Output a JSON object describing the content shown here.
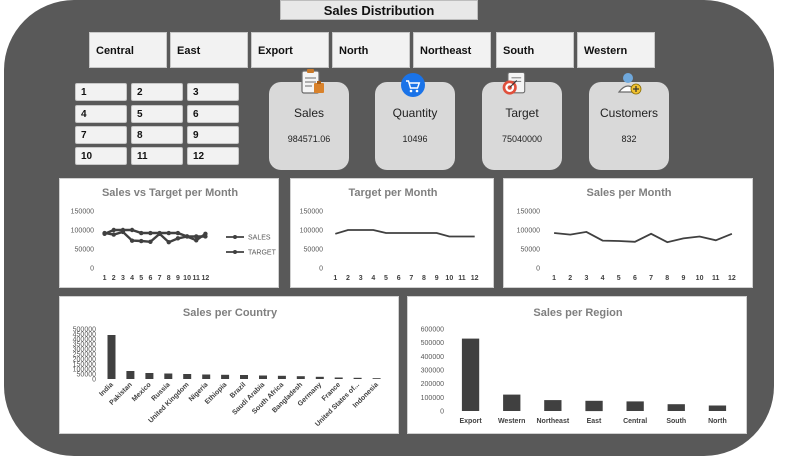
{
  "header": {
    "title": "Sales Distribution"
  },
  "regions": [
    "Central",
    "East",
    "Export",
    "North",
    "Northeast",
    "South",
    "Western"
  ],
  "months": [
    "1",
    "2",
    "3",
    "4",
    "5",
    "6",
    "7",
    "8",
    "9",
    "10",
    "11",
    "12"
  ],
  "kpis": [
    {
      "label": "Sales",
      "value": "984571.06",
      "icon": "clipboard-icon"
    },
    {
      "label": "Quantity",
      "value": "10496",
      "icon": "cart-icon"
    },
    {
      "label": "Target",
      "value": "75040000",
      "icon": "target-icon"
    },
    {
      "label": "Customers",
      "value": "832",
      "icon": "add-user-icon"
    }
  ],
  "colors": {
    "panel": "#595959",
    "card": "#d9d9d9",
    "button": "#f2f2f2",
    "line": "#404040",
    "bar": "#404040"
  },
  "chart_data": [
    {
      "id": "sales_vs_target",
      "type": "line",
      "title": "Sales vs Target per Month",
      "x": [
        "1",
        "2",
        "3",
        "4",
        "5",
        "6",
        "7",
        "8",
        "9",
        "10",
        "11",
        "12"
      ],
      "series": [
        {
          "name": "SALES",
          "values": [
            92000,
            88000,
            95000,
            72000,
            71000,
            69000,
            90000,
            68000,
            78000,
            83000,
            73000,
            90000
          ]
        },
        {
          "name": "TARGET",
          "values": [
            90000,
            100000,
            100000,
            100000,
            92000,
            92000,
            92000,
            92000,
            92000,
            83000,
            83000,
            83000
          ]
        }
      ],
      "yticks": [
        0,
        50000,
        100000,
        150000
      ],
      "ylim": [
        0,
        150000
      ],
      "legend": "right"
    },
    {
      "id": "target_per_month",
      "type": "line",
      "title": "Target per Month",
      "x": [
        "1",
        "2",
        "3",
        "4",
        "5",
        "6",
        "7",
        "8",
        "9",
        "10",
        "11",
        "12"
      ],
      "series": [
        {
          "values": [
            90000,
            100000,
            100000,
            100000,
            92000,
            92000,
            92000,
            92000,
            92000,
            83000,
            83000,
            83000
          ]
        }
      ],
      "yticks": [
        0,
        50000,
        100000,
        150000
      ],
      "ylim": [
        0,
        150000
      ]
    },
    {
      "id": "sales_per_month",
      "type": "line",
      "title": "Sales per Month",
      "x": [
        "1",
        "2",
        "3",
        "4",
        "5",
        "6",
        "7",
        "8",
        "9",
        "10",
        "11",
        "12"
      ],
      "series": [
        {
          "values": [
            92000,
            88000,
            95000,
            72000,
            71000,
            69000,
            90000,
            68000,
            78000,
            83000,
            73000,
            90000
          ]
        }
      ],
      "yticks": [
        0,
        50000,
        100000,
        150000
      ],
      "ylim": [
        0,
        150000
      ]
    },
    {
      "id": "sales_per_country",
      "type": "bar",
      "title": "Sales per Country",
      "categories": [
        "India",
        "Pakistan",
        "Mexico",
        "Russia",
        "United Kingdom",
        "Nigeria",
        "Ethiopia",
        "Brazil",
        "Saudi Arabia",
        "South Africa",
        "Bangladesh",
        "Germany",
        "France",
        "United States of...",
        "Indonesia"
      ],
      "values": [
        440000,
        80000,
        60000,
        55000,
        50000,
        45000,
        42000,
        40000,
        35000,
        32000,
        28000,
        22000,
        15000,
        12000,
        8000
      ],
      "yticks": [
        0,
        50000,
        100000,
        150000,
        200000,
        250000,
        300000,
        350000,
        400000,
        450000,
        500000
      ],
      "ylim": [
        0,
        500000
      ]
    },
    {
      "id": "sales_per_region",
      "type": "bar",
      "title": "Sales per Region",
      "categories": [
        "Export",
        "Western",
        "Northeast",
        "East",
        "Central",
        "South",
        "North"
      ],
      "values": [
        530000,
        120000,
        80000,
        75000,
        70000,
        50000,
        40000
      ],
      "yticks": [
        0,
        100000,
        200000,
        300000,
        400000,
        500000,
        600000
      ],
      "ylim": [
        0,
        600000
      ]
    }
  ]
}
